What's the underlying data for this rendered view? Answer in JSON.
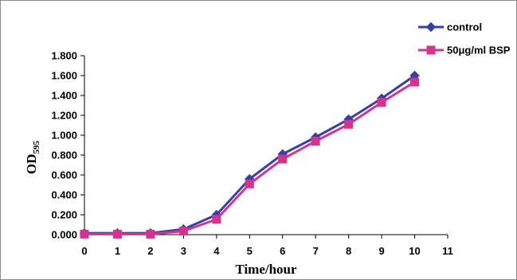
{
  "chart_data": {
    "type": "line",
    "title": "",
    "xlabel": "Time/hour",
    "ylabel_main": "OD",
    "ylabel_sub": "595",
    "xlim": [
      0,
      11
    ],
    "ylim": [
      0,
      1.8
    ],
    "x_ticks": [
      "0",
      "1",
      "2",
      "3",
      "4",
      "5",
      "6",
      "7",
      "8",
      "9",
      "10",
      "11"
    ],
    "y_ticks": [
      "0.000",
      "0.200",
      "0.400",
      "0.600",
      "0.800",
      "1.000",
      "1.200",
      "1.400",
      "1.600",
      "1.800"
    ],
    "grid": false,
    "legend_position": "top-right",
    "x": [
      0,
      1,
      2,
      3,
      4,
      5,
      6,
      7,
      8,
      9,
      10
    ],
    "series": [
      {
        "name": "control",
        "color": "#3a3fa8",
        "marker": "diamond",
        "values": [
          0.015,
          0.015,
          0.015,
          0.055,
          0.2,
          0.56,
          0.81,
          0.98,
          1.16,
          1.37,
          1.6
        ]
      },
      {
        "name": "50μg/ml BSP",
        "color": "#d6338f",
        "marker": "square",
        "values": [
          0.005,
          0.005,
          0.005,
          0.035,
          0.155,
          0.51,
          0.76,
          0.94,
          1.11,
          1.33,
          1.535
        ]
      }
    ]
  }
}
